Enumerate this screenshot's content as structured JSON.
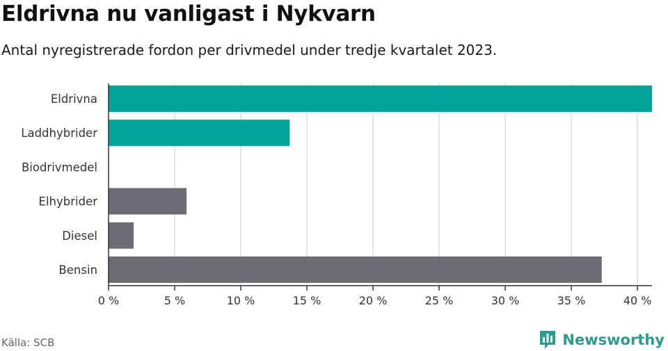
{
  "title": "Eldrivna nu vanligast i Nykvarn",
  "subtitle": "Antal nyregistrerade fordon per drivmedel under tredje kvartalet 2023.",
  "source": "Källa: SCB",
  "brand": "Newsworthy",
  "colors": {
    "highlight": "#00a398",
    "other": "#6e6d76",
    "grid": "#dddddd",
    "brand": "#2a9d8f"
  },
  "chart_data": {
    "type": "bar",
    "orientation": "horizontal",
    "categories": [
      "Eldrivna",
      "Laddhybrider",
      "Biodrivmedel",
      "Elhybrider",
      "Diesel",
      "Bensin"
    ],
    "values": [
      41.1,
      13.7,
      0,
      5.9,
      1.9,
      37.3
    ],
    "value_unit": "%",
    "bar_groups": [
      "highlight",
      "highlight",
      "highlight",
      "other",
      "other",
      "other"
    ],
    "xlim": [
      0,
      41.1
    ],
    "x_ticks": [
      0,
      5,
      10,
      15,
      20,
      25,
      30,
      35,
      40
    ],
    "x_tick_labels": [
      "0 %",
      "5 %",
      "10 %",
      "15 %",
      "20 %",
      "25 %",
      "30 %",
      "35 %",
      "40 %"
    ],
    "grid": true,
    "legend": "none"
  }
}
